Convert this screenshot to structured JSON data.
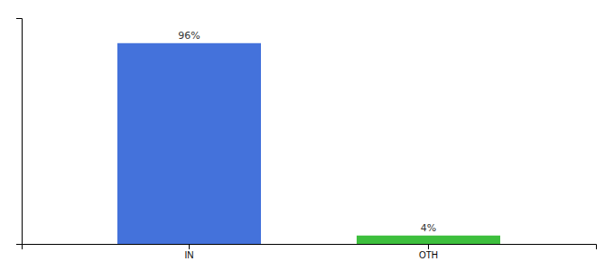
{
  "chart_data": {
    "type": "bar",
    "categories": [
      "IN",
      "OTH"
    ],
    "values": [
      96,
      4
    ],
    "value_labels": [
      "96%",
      "4%"
    ],
    "colors": [
      "#4472db",
      "#3dbf3d"
    ],
    "ylim": [
      0,
      108
    ],
    "data_labels": true,
    "tick_labels": "x",
    "grid": false
  }
}
